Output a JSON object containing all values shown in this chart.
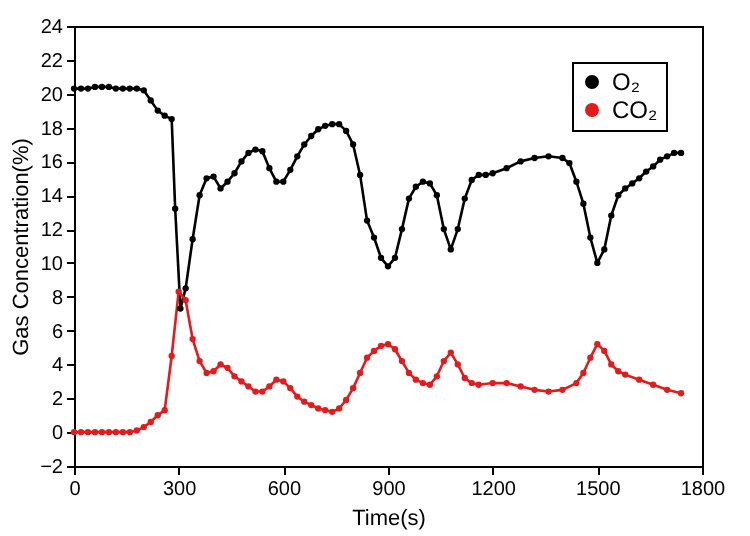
{
  "chart_data": {
    "type": "line",
    "xlabel": "Time(s)",
    "ylabel": "Gas Concentration(%)",
    "xlim": [
      0,
      1800
    ],
    "xticks": [
      0,
      300,
      600,
      900,
      1200,
      1500,
      1800
    ],
    "ylim": [
      -2,
      24
    ],
    "yticks": [
      -2,
      0,
      2,
      4,
      6,
      8,
      10,
      12,
      14,
      16,
      18,
      20,
      22,
      24
    ],
    "grid": false,
    "legend": "top right",
    "marker": "circle",
    "line_style": "solid",
    "series": [
      {
        "name": "O₂",
        "color": "#000000",
        "x": [
          0,
          20,
          40,
          60,
          80,
          100,
          120,
          140,
          160,
          180,
          200,
          220,
          240,
          260,
          280,
          290,
          305,
          320,
          340,
          360,
          380,
          400,
          420,
          440,
          460,
          480,
          500,
          520,
          540,
          560,
          580,
          600,
          620,
          640,
          660,
          680,
          700,
          720,
          740,
          760,
          780,
          800,
          820,
          840,
          860,
          880,
          900,
          920,
          940,
          960,
          980,
          1000,
          1020,
          1040,
          1060,
          1080,
          1100,
          1120,
          1140,
          1160,
          1180,
          1200,
          1240,
          1280,
          1320,
          1360,
          1400,
          1420,
          1440,
          1460,
          1480,
          1500,
          1520,
          1540,
          1560,
          1580,
          1600,
          1620,
          1640,
          1660,
          1680,
          1700,
          1720,
          1740
        ],
        "values": [
          20.3,
          20.3,
          20.3,
          20.4,
          20.4,
          20.4,
          20.3,
          20.3,
          20.3,
          20.3,
          20.2,
          19.6,
          19.0,
          18.7,
          18.5,
          13.2,
          7.3,
          8.5,
          11.4,
          14.0,
          15.0,
          15.1,
          14.4,
          14.8,
          15.3,
          16.0,
          16.5,
          16.7,
          16.6,
          15.6,
          14.8,
          14.8,
          15.5,
          16.3,
          17.0,
          17.5,
          17.9,
          18.1,
          18.2,
          18.2,
          17.8,
          17.0,
          15.2,
          12.5,
          11.5,
          10.3,
          9.8,
          10.3,
          12.0,
          13.8,
          14.5,
          14.8,
          14.7,
          14.0,
          12.0,
          10.8,
          12.0,
          13.8,
          14.9,
          15.2,
          15.2,
          15.3,
          15.6,
          16.0,
          16.2,
          16.3,
          16.2,
          15.9,
          14.8,
          13.5,
          11.5,
          10.0,
          10.8,
          12.8,
          14.0,
          14.4,
          14.7,
          15.0,
          15.4,
          15.7,
          16.1,
          16.3,
          16.5,
          16.5
        ]
      },
      {
        "name": "CO₂",
        "color": "#e41a1c",
        "x": [
          0,
          20,
          40,
          60,
          80,
          100,
          120,
          140,
          160,
          180,
          200,
          220,
          240,
          260,
          280,
          300,
          320,
          340,
          360,
          380,
          400,
          420,
          440,
          460,
          480,
          500,
          520,
          540,
          560,
          580,
          600,
          620,
          640,
          660,
          680,
          700,
          720,
          740,
          760,
          780,
          800,
          820,
          840,
          860,
          880,
          900,
          920,
          940,
          960,
          980,
          1000,
          1020,
          1040,
          1060,
          1080,
          1100,
          1120,
          1140,
          1160,
          1200,
          1240,
          1280,
          1320,
          1360,
          1400,
          1440,
          1460,
          1480,
          1500,
          1520,
          1540,
          1560,
          1580,
          1620,
          1660,
          1700,
          1740
        ],
        "values": [
          0,
          0,
          0,
          0,
          0,
          0,
          0,
          0,
          0,
          0.1,
          0.3,
          0.6,
          1.0,
          1.3,
          4.5,
          8.3,
          7.8,
          5.5,
          4.2,
          3.5,
          3.6,
          4.0,
          3.8,
          3.3,
          3.0,
          2.7,
          2.4,
          2.4,
          2.7,
          3.1,
          3.0,
          2.6,
          2.1,
          1.8,
          1.6,
          1.4,
          1.3,
          1.2,
          1.4,
          1.9,
          2.6,
          3.5,
          4.4,
          4.8,
          5.1,
          5.2,
          4.9,
          4.2,
          3.5,
          3.1,
          2.9,
          2.8,
          3.3,
          4.2,
          4.7,
          4.0,
          3.2,
          2.9,
          2.8,
          2.9,
          2.9,
          2.7,
          2.5,
          2.4,
          2.5,
          2.9,
          3.5,
          4.4,
          5.2,
          4.8,
          4.0,
          3.6,
          3.4,
          3.1,
          2.8,
          2.5,
          2.3
        ]
      }
    ]
  }
}
